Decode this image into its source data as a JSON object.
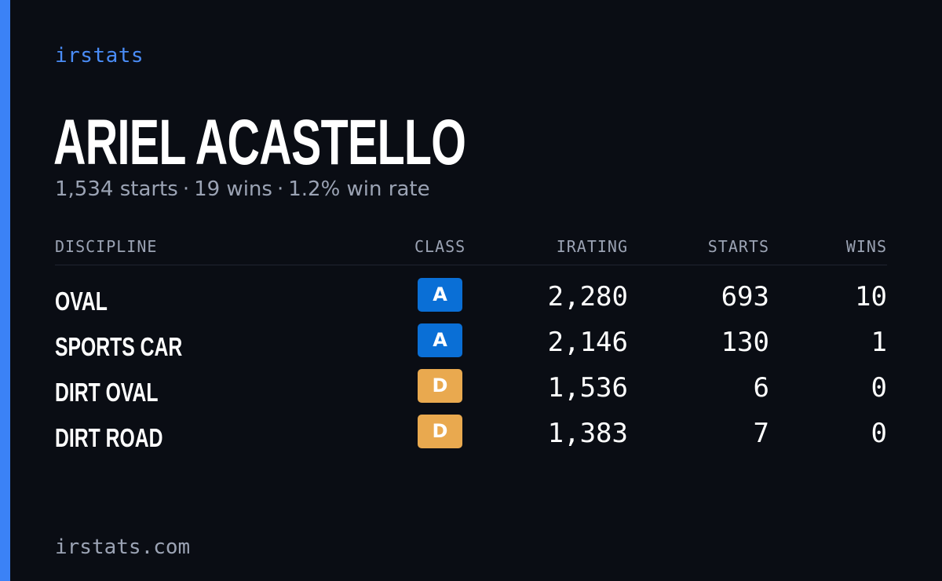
{
  "brand": "irstats",
  "player": {
    "name": "ARIEL ACASTELLO",
    "summary_starts": "1,534 starts",
    "summary_wins": "19 wins",
    "summary_win_rate": "1.2% win rate",
    "separator": "·"
  },
  "table": {
    "headers": {
      "discipline": "DISCIPLINE",
      "class": "CLASS",
      "irating": "IRATING",
      "starts": "STARTS",
      "wins": "WINS"
    },
    "rows": [
      {
        "discipline": "OVAL",
        "class": "A",
        "class_color": "#0a6fd6",
        "irating": "2,280",
        "starts": "693",
        "wins": "10"
      },
      {
        "discipline": "SPORTS CAR",
        "class": "A",
        "class_color": "#0a6fd6",
        "irating": "2,146",
        "starts": "130",
        "wins": "1"
      },
      {
        "discipline": "DIRT OVAL",
        "class": "D",
        "class_color": "#e9a94f",
        "irating": "1,536",
        "starts": "6",
        "wins": "0"
      },
      {
        "discipline": "DIRT ROAD",
        "class": "D",
        "class_color": "#e9a94f",
        "irating": "1,383",
        "starts": "7",
        "wins": "0"
      }
    ]
  },
  "footer": {
    "domain": "irstats.com"
  },
  "colors": {
    "background": "#0a0d14",
    "accent": "#3b82f6",
    "muted_text": "#9ba3b4"
  }
}
